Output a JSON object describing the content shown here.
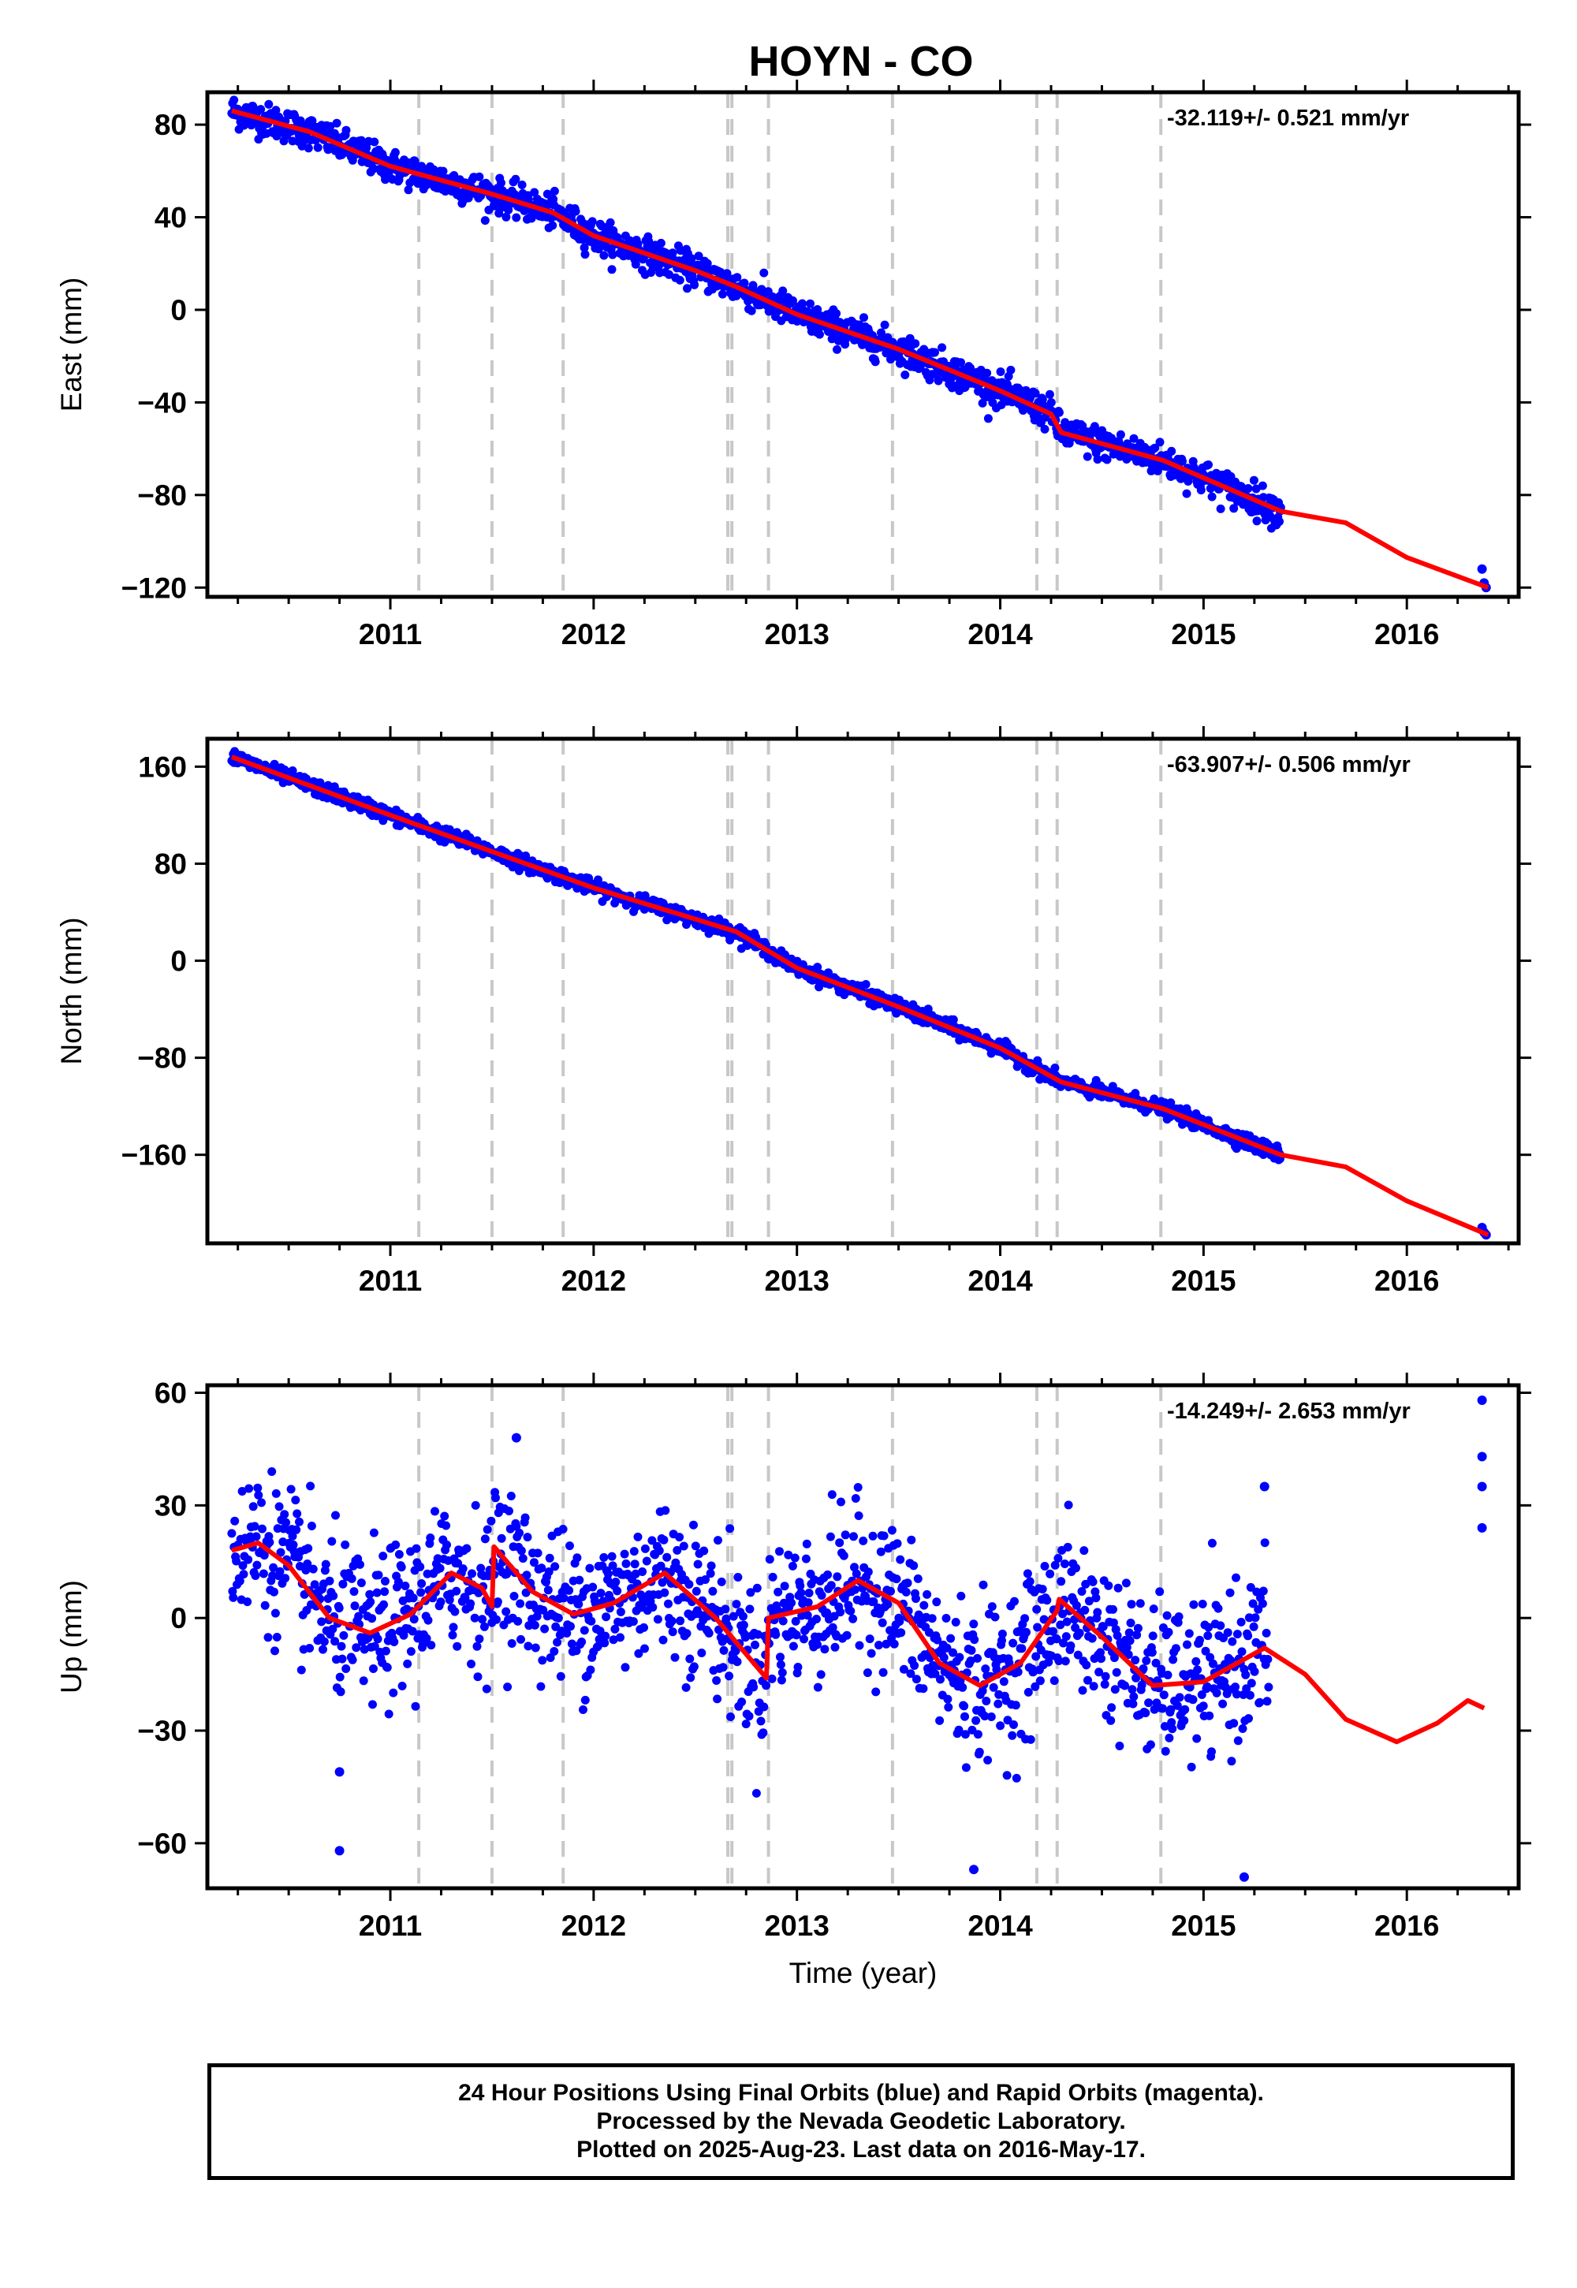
{
  "title": "HOYN - CO",
  "colors": {
    "final_orbits": "#0000ff",
    "model": "#ff0000",
    "steps": "#c8c8c8",
    "frame": "#000000"
  },
  "chart_data": [
    {
      "type": "scatter",
      "ylabel": "East (mm)",
      "rate_text": "-32.119+/- 0.521 mm/yr",
      "xlim": [
        2010.1,
        2016.55
      ],
      "ylim": [
        -124,
        94
      ],
      "yticks": [
        80,
        40,
        0,
        -40,
        -80,
        -120
      ],
      "ytick_labels": [
        "80",
        "40",
        "0",
        "−40",
        "−80",
        "−120"
      ],
      "xticks": [
        2011,
        2012,
        2013,
        2014,
        2015,
        2016
      ],
      "xtick_labels": [
        "2011",
        "2012",
        "2013",
        "2014",
        "2015",
        "2016"
      ],
      "series": [
        {
          "kind": "points",
          "x_start": 2010.22,
          "x_end": 2015.38,
          "y_start": 87,
          "y_end": -85,
          "noise": 3.5,
          "points": 1450,
          "extra_points": [
            [
              2016.37,
              -112
            ],
            [
              2016.38,
              -118
            ],
            [
              2016.39,
              -120
            ]
          ]
        },
        {
          "kind": "line",
          "x": [
            2010.22,
            2010.6,
            2011.0,
            2011.5,
            2011.8,
            2012.0,
            2012.5,
            2012.7,
            2013.0,
            2013.5,
            2014.0,
            2014.25,
            2014.3,
            2014.8,
            2015.38,
            2015.7,
            2016.0,
            2016.4
          ],
          "y": [
            86,
            77,
            62,
            50,
            42,
            32,
            17,
            10,
            -2,
            -17,
            -35,
            -45,
            -53,
            -65,
            -87,
            -92,
            -107,
            -120
          ]
        }
      ]
    },
    {
      "type": "scatter",
      "ylabel": "North (mm)",
      "rate_text": "-63.907+/- 0.506 mm/yr",
      "xlim": [
        2010.1,
        2016.55
      ],
      "ylim": [
        -233,
        183
      ],
      "yticks": [
        160,
        80,
        0,
        -80,
        -160
      ],
      "ytick_labels": [
        "160",
        "80",
        "0",
        "−80",
        "−160"
      ],
      "xticks": [
        2011,
        2012,
        2013,
        2014,
        2015,
        2016
      ],
      "xtick_labels": [
        "2011",
        "2012",
        "2013",
        "2014",
        "2015",
        "2016"
      ],
      "series": [
        {
          "kind": "points",
          "x_start": 2010.22,
          "x_end": 2015.38,
          "y_start": 170,
          "y_end": -162,
          "noise": 3.0,
          "points": 1450,
          "extra_points": [
            [
              2016.37,
              -220
            ],
            [
              2016.38,
              -224
            ],
            [
              2016.39,
              -226
            ]
          ]
        },
        {
          "kind": "line",
          "x": [
            2010.22,
            2011.0,
            2011.5,
            2012.0,
            2012.7,
            2013.0,
            2013.5,
            2014.0,
            2014.3,
            2014.8,
            2015.38,
            2015.7,
            2016.0,
            2016.4
          ],
          "y": [
            168,
            120,
            90,
            60,
            24,
            -6,
            -38,
            -72,
            -100,
            -122,
            -160,
            -170,
            -198,
            -226
          ]
        }
      ]
    },
    {
      "type": "scatter",
      "ylabel": "Up (mm)",
      "xlabel": "Time (year)",
      "rate_text": "-14.249+/- 2.653 mm/yr",
      "xlim": [
        2010.1,
        2016.55
      ],
      "ylim": [
        -72,
        62
      ],
      "yticks": [
        60,
        30,
        0,
        -30,
        -60
      ],
      "ytick_labels": [
        "60",
        "30",
        "0",
        "−30",
        "−60"
      ],
      "xticks": [
        2011,
        2012,
        2013,
        2014,
        2015,
        2016
      ],
      "xtick_labels": [
        "2011",
        "2012",
        "2013",
        "2014",
        "2015",
        "2016"
      ],
      "series": [
        {
          "kind": "points",
          "x_start": 2010.22,
          "x_end": 2015.32,
          "noise": 10.0,
          "points": 1400,
          "extra_points": [
            [
              2016.37,
              58
            ],
            [
              2016.37,
              43
            ],
            [
              2016.37,
              35
            ],
            [
              2016.37,
              24
            ],
            [
              2010.75,
              -62
            ],
            [
              2010.75,
              -41
            ],
            [
              2013.87,
              -67
            ],
            [
              2015.2,
              -69
            ],
            [
              2011.62,
              48
            ],
            [
              2015.3,
              35
            ]
          ]
        },
        {
          "kind": "line",
          "x": [
            2010.22,
            2010.35,
            2010.5,
            2010.7,
            2010.9,
            2011.1,
            2011.3,
            2011.45,
            2011.5,
            2011.51,
            2011.7,
            2011.9,
            2012.1,
            2012.35,
            2012.6,
            2012.85,
            2012.86,
            2013.1,
            2013.3,
            2013.5,
            2013.7,
            2013.9,
            2014.1,
            2014.28,
            2014.29,
            2014.5,
            2014.75,
            2015.0,
            2015.3,
            2015.5,
            2015.7,
            2015.95,
            2016.15,
            2016.3,
            2016.38
          ],
          "y": [
            18,
            20,
            14,
            0,
            -4,
            1,
            12,
            8,
            3,
            19,
            7,
            1,
            4,
            12,
            0,
            -16,
            0,
            3,
            10,
            4,
            -12,
            -18,
            -12,
            2,
            5,
            -5,
            -18,
            -17,
            -8,
            -15,
            -27,
            -33,
            -28,
            -22,
            -24
          ]
        }
      ]
    }
  ],
  "step_lines": [
    2011.14,
    2011.5,
    2011.85,
    2012.66,
    2012.68,
    2012.86,
    2013.47,
    2014.18,
    2014.28,
    2014.79
  ],
  "footer": {
    "line1": "24 Hour Positions Using Final Orbits (blue) and Rapid Orbits (magenta).",
    "line2": "Processed by the Nevada Geodetic Laboratory.",
    "line3": "Plotted on 2025-Aug-23. Last data on 2016-May-17."
  }
}
